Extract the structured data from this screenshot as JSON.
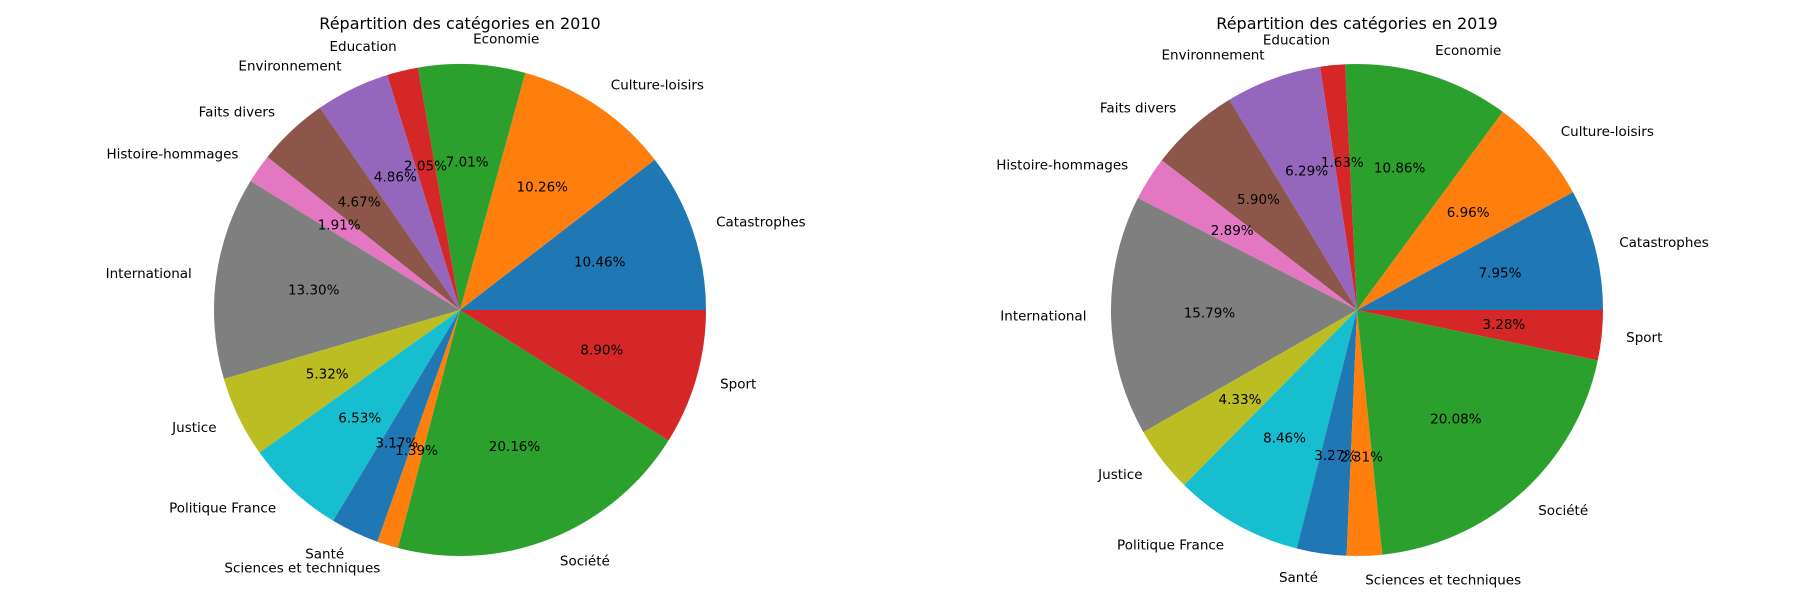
{
  "chart_data": [
    {
      "type": "pie",
      "title": "Répartition des catégories en 2010",
      "start_angle": 0,
      "direction": "counterclockwise",
      "slices": [
        {
          "label": "Catastrophes",
          "value": 10.46,
          "pct_text": "10.46%",
          "color": "#1f77b4"
        },
        {
          "label": "Culture-loisirs",
          "value": 10.26,
          "pct_text": "10.26%",
          "color": "#ff7f0e"
        },
        {
          "label": "Economie",
          "value": 7.01,
          "pct_text": "7.01%",
          "color": "#2ca02c"
        },
        {
          "label": "Education",
          "value": 2.05,
          "pct_text": "2.05%",
          "color": "#d62728"
        },
        {
          "label": "Environnement",
          "value": 4.86,
          "pct_text": "4.86%",
          "color": "#9467bd"
        },
        {
          "label": "Faits divers",
          "value": 4.67,
          "pct_text": "4.67%",
          "color": "#8c564b"
        },
        {
          "label": "Histoire-hommages",
          "value": 1.91,
          "pct_text": "1.91%",
          "color": "#e377c2"
        },
        {
          "label": "International",
          "value": 13.3,
          "pct_text": "13.30%",
          "color": "#7f7f7f"
        },
        {
          "label": "Justice",
          "value": 5.32,
          "pct_text": "5.32%",
          "color": "#bcbd22"
        },
        {
          "label": "Politique France",
          "value": 6.53,
          "pct_text": "6.53%",
          "color": "#17becf"
        },
        {
          "label": "Santé",
          "value": 3.17,
          "pct_text": "3.17%",
          "color": "#1f77b4"
        },
        {
          "label": "Sciences et techniques",
          "value": 1.39,
          "pct_text": "1.39%",
          "color": "#ff7f0e"
        },
        {
          "label": "Société",
          "value": 20.16,
          "pct_text": "20.16%",
          "color": "#2ca02c"
        },
        {
          "label": "Sport",
          "value": 8.9,
          "pct_text": "8.90%",
          "color": "#d62728"
        }
      ]
    },
    {
      "type": "pie",
      "title": "Répartition des catégories en 2019",
      "start_angle": 0,
      "direction": "counterclockwise",
      "slices": [
        {
          "label": "Catastrophes",
          "value": 7.95,
          "pct_text": "7.95%",
          "color": "#1f77b4"
        },
        {
          "label": "Culture-loisirs",
          "value": 6.96,
          "pct_text": "6.96%",
          "color": "#ff7f0e"
        },
        {
          "label": "Economie",
          "value": 10.86,
          "pct_text": "10.86%",
          "color": "#2ca02c"
        },
        {
          "label": "Education",
          "value": 1.63,
          "pct_text": "1.63%",
          "color": "#d62728"
        },
        {
          "label": "Environnement",
          "value": 6.29,
          "pct_text": "6.29%",
          "color": "#9467bd"
        },
        {
          "label": "Faits divers",
          "value": 5.9,
          "pct_text": "5.90%",
          "color": "#8c564b"
        },
        {
          "label": "Histoire-hommages",
          "value": 2.89,
          "pct_text": "2.89%",
          "color": "#e377c2"
        },
        {
          "label": "International",
          "value": 15.79,
          "pct_text": "15.79%",
          "color": "#7f7f7f"
        },
        {
          "label": "Justice",
          "value": 4.33,
          "pct_text": "4.33%",
          "color": "#bcbd22"
        },
        {
          "label": "Politique France",
          "value": 8.46,
          "pct_text": "8.46%",
          "color": "#17becf"
        },
        {
          "label": "Santé",
          "value": 3.27,
          "pct_text": "3.27%",
          "color": "#1f77b4"
        },
        {
          "label": "Sciences et techniques",
          "value": 2.31,
          "pct_text": "2.31%",
          "color": "#ff7f0e"
        },
        {
          "label": "Société",
          "value": 20.08,
          "pct_text": "20.08%",
          "color": "#2ca02c"
        },
        {
          "label": "Sport",
          "value": 3.28,
          "pct_text": "3.28%",
          "color": "#d62728"
        }
      ]
    }
  ]
}
